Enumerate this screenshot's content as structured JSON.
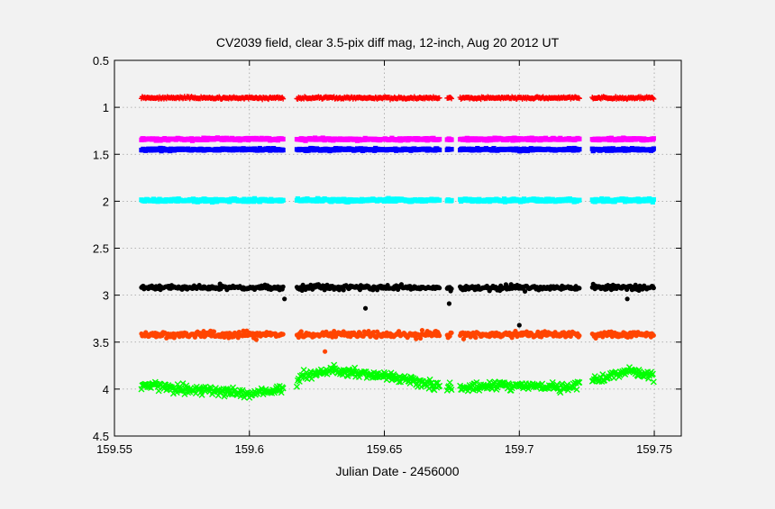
{
  "chart_data": {
    "type": "scatter",
    "title": "CV2039 field, clear 3.5-pix diff mag, 12-inch, Aug 20 2012 UT",
    "xlabel": "Julian Date - 2456000",
    "ylabel": "",
    "xlim": [
      159.55,
      159.76
    ],
    "ylim": [
      0.5,
      4.5
    ],
    "y_inverted": true,
    "grid": true,
    "x_ticks": [
      "159.55",
      "159.6",
      "159.65",
      "159.7",
      "159.75"
    ],
    "x_tick_values": [
      159.55,
      159.6,
      159.65,
      159.7,
      159.75
    ],
    "y_ticks": [
      "0.5",
      "1",
      "1.5",
      "2",
      "2.5",
      "3",
      "3.5",
      "4",
      "4.5"
    ],
    "y_tick_values": [
      0.5,
      1,
      1.5,
      2,
      2.5,
      3,
      3.5,
      4,
      4.5
    ],
    "x_start": 159.56,
    "x_end": 159.75,
    "gaps": [
      [
        159.6125,
        159.6175
      ],
      [
        159.6705,
        159.673
      ],
      [
        159.675,
        159.678
      ],
      [
        159.7225,
        159.727
      ]
    ],
    "series": [
      {
        "color": "#ff0000",
        "marker": "plus",
        "base": 0.9,
        "sigma": 0.012,
        "trend": []
      },
      {
        "color": "#ff00ff",
        "marker": "square",
        "base": 1.34,
        "sigma": 0.012,
        "trend": []
      },
      {
        "color": "#0000ff",
        "marker": "square",
        "base": 1.45,
        "sigma": 0.012,
        "trend": []
      },
      {
        "color": "#00ffff",
        "marker": "square",
        "base": 1.99,
        "sigma": 0.015,
        "trend": []
      },
      {
        "color": "#000000",
        "marker": "dot",
        "base": 2.92,
        "sigma": 0.025,
        "trend": [],
        "outliers": [
          [
            159.613,
            3.04
          ],
          [
            159.643,
            3.14
          ],
          [
            159.674,
            3.09
          ],
          [
            159.7,
            3.32
          ],
          [
            159.74,
            3.04
          ]
        ]
      },
      {
        "color": "#ff4500",
        "marker": "dot",
        "base": 3.42,
        "sigma": 0.035,
        "trend": [],
        "outliers": [
          [
            159.628,
            3.6
          ]
        ]
      },
      {
        "color": "#00ff00",
        "marker": "cross",
        "base": 3.9,
        "sigma": 0.045,
        "trend": [
          [
            159.56,
            3.95
          ],
          [
            159.575,
            4.0
          ],
          [
            159.59,
            4.02
          ],
          [
            159.6,
            4.05
          ],
          [
            159.612,
            4.0
          ],
          [
            159.62,
            3.86
          ],
          [
            159.63,
            3.8
          ],
          [
            159.65,
            3.86
          ],
          [
            159.665,
            3.94
          ],
          [
            159.68,
            3.99
          ],
          [
            159.69,
            3.97
          ],
          [
            159.7,
            3.96
          ],
          [
            159.715,
            3.99
          ],
          [
            159.725,
            3.93
          ],
          [
            159.74,
            3.81
          ],
          [
            159.75,
            3.86
          ]
        ]
      }
    ]
  }
}
